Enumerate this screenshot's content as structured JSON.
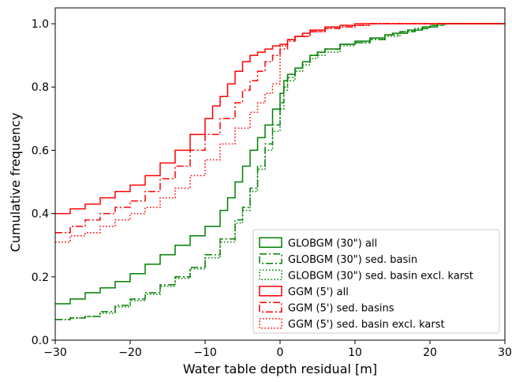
{
  "chart_data": {
    "type": "line",
    "title": "",
    "xlabel": "Water table depth residual [m]",
    "ylabel": "Cumulative frequency",
    "xlim": [
      -30,
      30
    ],
    "ylim": [
      0,
      1.05
    ],
    "xticks": [
      -30,
      -20,
      -10,
      0,
      10,
      20,
      30
    ],
    "xtick_labels": [
      "−30",
      "−20",
      "−10",
      "0",
      "10",
      "20",
      "30"
    ],
    "yticks": [
      0.0,
      0.2,
      0.4,
      0.6,
      0.8,
      1.0
    ],
    "ytick_labels": [
      "0.0",
      "0.2",
      "0.4",
      "0.6",
      "0.8",
      "1.0"
    ],
    "grid": false,
    "legend_position": "lower-right",
    "series": [
      {
        "name": "GLOBGM (30\") all",
        "color": "#008000",
        "style": "solid",
        "points": [
          [
            -30,
            0.115
          ],
          [
            -28,
            0.13
          ],
          [
            -26,
            0.15
          ],
          [
            -24,
            0.165
          ],
          [
            -22,
            0.185
          ],
          [
            -20,
            0.21
          ],
          [
            -18,
            0.24
          ],
          [
            -16,
            0.27
          ],
          [
            -14,
            0.3
          ],
          [
            -12,
            0.33
          ],
          [
            -10,
            0.36
          ],
          [
            -8,
            0.41
          ],
          [
            -7,
            0.45
          ],
          [
            -6,
            0.5
          ],
          [
            -5,
            0.55
          ],
          [
            -4,
            0.6
          ],
          [
            -3,
            0.64
          ],
          [
            -2,
            0.68
          ],
          [
            -1,
            0.73
          ],
          [
            0,
            0.78
          ],
          [
            0.5,
            0.82
          ],
          [
            1,
            0.84
          ],
          [
            2,
            0.86
          ],
          [
            3,
            0.88
          ],
          [
            4,
            0.9
          ],
          [
            5,
            0.91
          ],
          [
            6,
            0.92
          ],
          [
            8,
            0.935
          ],
          [
            10,
            0.945
          ],
          [
            12,
            0.955
          ],
          [
            14,
            0.965
          ],
          [
            15,
            0.97
          ],
          [
            17,
            0.98
          ],
          [
            19,
            0.99
          ],
          [
            21,
            1.0
          ],
          [
            30,
            1.0
          ]
        ]
      },
      {
        "name": "GLOBGM (30\") sed. basin",
        "color": "#008000",
        "style": "dashdot",
        "points": [
          [
            -30,
            0.065
          ],
          [
            -28,
            0.07
          ],
          [
            -26,
            0.075
          ],
          [
            -24,
            0.09
          ],
          [
            -22,
            0.11
          ],
          [
            -20,
            0.13
          ],
          [
            -18,
            0.15
          ],
          [
            -16,
            0.175
          ],
          [
            -14,
            0.2
          ],
          [
            -12,
            0.23
          ],
          [
            -10,
            0.27
          ],
          [
            -8,
            0.32
          ],
          [
            -6,
            0.38
          ],
          [
            -5,
            0.42
          ],
          [
            -4,
            0.48
          ],
          [
            -3,
            0.55
          ],
          [
            -2,
            0.62
          ],
          [
            -1,
            0.68
          ],
          [
            0,
            0.75
          ],
          [
            0.5,
            0.8
          ],
          [
            1,
            0.83
          ],
          [
            2,
            0.86
          ],
          [
            3,
            0.88
          ],
          [
            4,
            0.9
          ],
          [
            5,
            0.91
          ],
          [
            6,
            0.92
          ],
          [
            8,
            0.935
          ],
          [
            10,
            0.94
          ],
          [
            12,
            0.95
          ],
          [
            14,
            0.965
          ],
          [
            16,
            0.975
          ],
          [
            18,
            0.985
          ],
          [
            20,
            0.995
          ],
          [
            22,
            1.0
          ],
          [
            30,
            1.0
          ]
        ]
      },
      {
        "name": "GLOBGM (30\") sed. basin excl. karst",
        "color": "#008000",
        "style": "dotted",
        "points": [
          [
            -30,
            0.065
          ],
          [
            -28,
            0.07
          ],
          [
            -26,
            0.075
          ],
          [
            -24,
            0.085
          ],
          [
            -22,
            0.105
          ],
          [
            -20,
            0.125
          ],
          [
            -18,
            0.145
          ],
          [
            -16,
            0.17
          ],
          [
            -14,
            0.195
          ],
          [
            -12,
            0.225
          ],
          [
            -10,
            0.26
          ],
          [
            -8,
            0.31
          ],
          [
            -6,
            0.37
          ],
          [
            -5,
            0.41
          ],
          [
            -4,
            0.47
          ],
          [
            -3,
            0.54
          ],
          [
            -2,
            0.6
          ],
          [
            -1,
            0.66
          ],
          [
            0,
            0.73
          ],
          [
            0.5,
            0.79
          ],
          [
            1,
            0.82
          ],
          [
            2,
            0.85
          ],
          [
            3,
            0.87
          ],
          [
            4,
            0.89
          ],
          [
            5,
            0.9
          ],
          [
            6,
            0.91
          ],
          [
            8,
            0.93
          ],
          [
            10,
            0.94
          ],
          [
            12,
            0.95
          ],
          [
            14,
            0.96
          ],
          [
            16,
            0.975
          ],
          [
            18,
            0.985
          ],
          [
            20,
            0.995
          ],
          [
            22,
            1.0
          ],
          [
            30,
            1.0
          ]
        ]
      },
      {
        "name": "GGM (5') all",
        "color": "#ff0000",
        "style": "solid",
        "points": [
          [
            -30,
            0.4
          ],
          [
            -28,
            0.415
          ],
          [
            -26,
            0.43
          ],
          [
            -24,
            0.45
          ],
          [
            -22,
            0.47
          ],
          [
            -20,
            0.49
          ],
          [
            -18,
            0.52
          ],
          [
            -16,
            0.56
          ],
          [
            -14,
            0.6
          ],
          [
            -12,
            0.65
          ],
          [
            -10,
            0.7
          ],
          [
            -9,
            0.74
          ],
          [
            -8,
            0.77
          ],
          [
            -7,
            0.81
          ],
          [
            -6,
            0.85
          ],
          [
            -5,
            0.88
          ],
          [
            -4,
            0.9
          ],
          [
            -3,
            0.91
          ],
          [
            -2,
            0.92
          ],
          [
            -1,
            0.93
          ],
          [
            0,
            0.935
          ],
          [
            1,
            0.95
          ],
          [
            2,
            0.96
          ],
          [
            3,
            0.97
          ],
          [
            4,
            0.98
          ],
          [
            6,
            0.99
          ],
          [
            8,
            0.995
          ],
          [
            10,
            1.0
          ],
          [
            30,
            1.0
          ]
        ]
      },
      {
        "name": "GGM (5') sed. basins",
        "color": "#ff0000",
        "style": "dashdot",
        "points": [
          [
            -30,
            0.34
          ],
          [
            -28,
            0.36
          ],
          [
            -26,
            0.38
          ],
          [
            -24,
            0.4
          ],
          [
            -22,
            0.42
          ],
          [
            -20,
            0.44
          ],
          [
            -18,
            0.47
          ],
          [
            -16,
            0.51
          ],
          [
            -14,
            0.55
          ],
          [
            -12,
            0.6
          ],
          [
            -10,
            0.65
          ],
          [
            -8,
            0.7
          ],
          [
            -6,
            0.75
          ],
          [
            -5,
            0.79
          ],
          [
            -4,
            0.82
          ],
          [
            -3,
            0.85
          ],
          [
            -2,
            0.88
          ],
          [
            -1,
            0.9
          ],
          [
            0,
            0.92
          ],
          [
            1,
            0.945
          ],
          [
            2,
            0.96
          ],
          [
            4,
            0.975
          ],
          [
            6,
            0.985
          ],
          [
            8,
            0.99
          ],
          [
            10,
            0.995
          ],
          [
            12,
            1.0
          ],
          [
            30,
            1.0
          ]
        ]
      },
      {
        "name": "GGM (5') sed. basin excl. karst",
        "color": "#ff0000",
        "style": "dotted",
        "points": [
          [
            -30,
            0.31
          ],
          [
            -28,
            0.33
          ],
          [
            -26,
            0.34
          ],
          [
            -24,
            0.36
          ],
          [
            -22,
            0.38
          ],
          [
            -20,
            0.4
          ],
          [
            -18,
            0.42
          ],
          [
            -16,
            0.45
          ],
          [
            -14,
            0.48
          ],
          [
            -12,
            0.52
          ],
          [
            -10,
            0.57
          ],
          [
            -8,
            0.62
          ],
          [
            -6,
            0.67
          ],
          [
            -4,
            0.72
          ],
          [
            -3,
            0.75
          ],
          [
            -2,
            0.78
          ],
          [
            -1,
            0.81
          ],
          [
            0,
            0.84
          ],
          [
            0,
            0.93
          ],
          [
            1,
            0.95
          ],
          [
            2,
            0.96
          ],
          [
            4,
            0.975
          ],
          [
            6,
            0.985
          ],
          [
            8,
            0.99
          ],
          [
            10,
            0.995
          ],
          [
            12,
            1.0
          ],
          [
            30,
            1.0
          ]
        ]
      }
    ]
  }
}
